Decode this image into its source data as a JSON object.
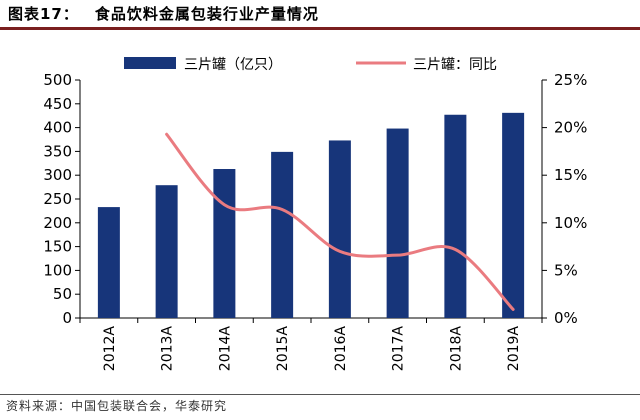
{
  "header": {
    "figure_label": "图表17：",
    "title": "食品饮料金属包装行业产量情况"
  },
  "source": "资料来源：中国包装联合会，华泰研究",
  "colors": {
    "bar": "#17357a",
    "line": "#ea7b80",
    "title_rule": "#7a1f1f"
  },
  "chart_data": {
    "type": "bar",
    "categories": [
      "2012A",
      "2013A",
      "2014A",
      "2015A",
      "2016A",
      "2017A",
      "2018A",
      "2019A"
    ],
    "series": [
      {
        "name": "三片罐（亿只）",
        "kind": "bar",
        "axis": "left",
        "values": [
          233,
          279,
          313,
          349,
          373,
          398,
          427,
          431
        ]
      },
      {
        "name": "三片罐：同比",
        "kind": "line",
        "axis": "right",
        "values": [
          null,
          19.3,
          11.9,
          11.4,
          7.0,
          6.6,
          7.2,
          0.9
        ]
      }
    ],
    "y_left": {
      "ylim": [
        0,
        500
      ],
      "ticks": [
        "0",
        "50",
        "100",
        "150",
        "200",
        "250",
        "300",
        "350",
        "400",
        "450",
        "500"
      ]
    },
    "y_right": {
      "ylim": [
        0,
        25
      ],
      "ticks": [
        "0%",
        "5%",
        "10%",
        "15%",
        "20%",
        "25%"
      ]
    },
    "legend": "top",
    "grid": false
  }
}
